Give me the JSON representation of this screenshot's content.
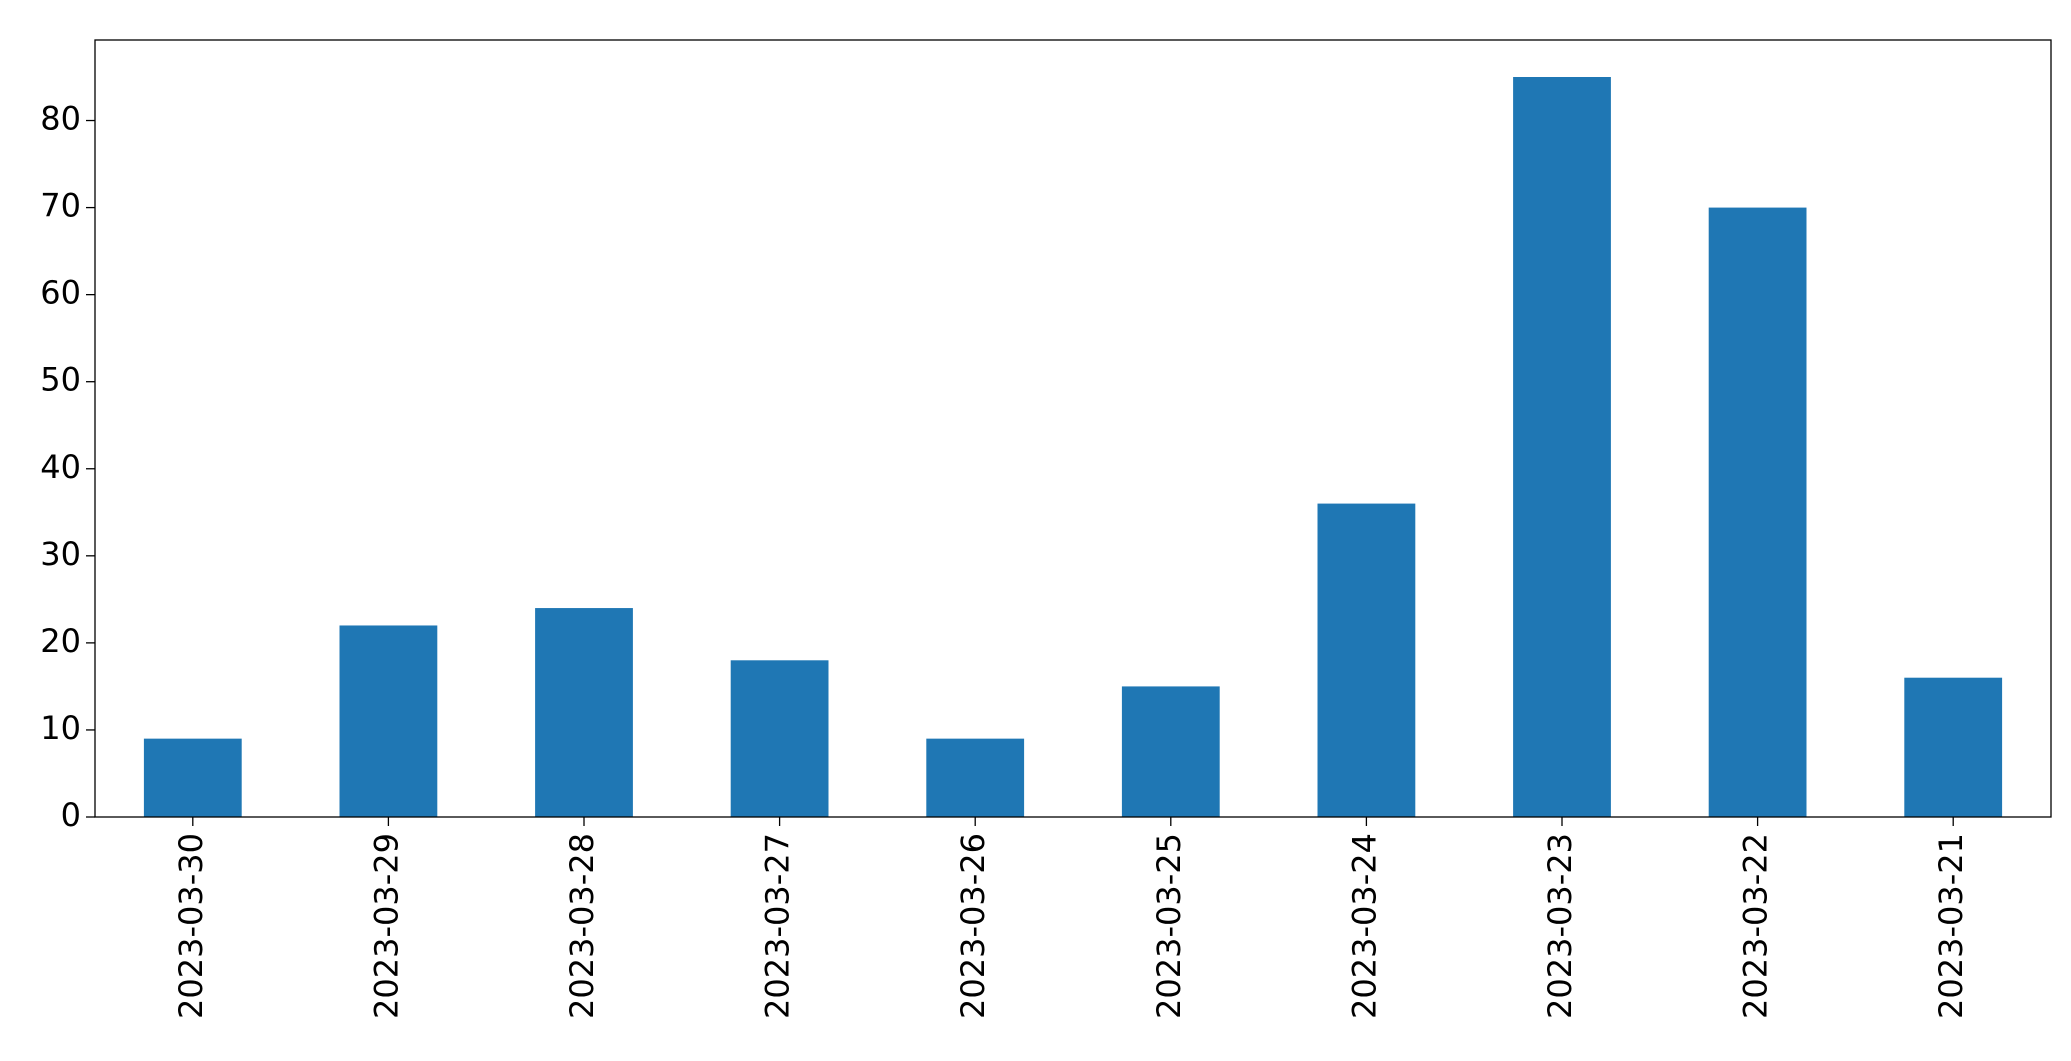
{
  "chart_data": {
    "type": "bar",
    "categories": [
      "2023-03-30",
      "2023-03-29",
      "2023-03-28",
      "2023-03-27",
      "2023-03-26",
      "2023-03-25",
      "2023-03-24",
      "2023-03-23",
      "2023-03-22",
      "2023-03-21"
    ],
    "values": [
      9,
      22,
      24,
      18,
      9,
      15,
      36,
      85,
      70,
      16
    ],
    "color": "#1f77b4",
    "ylim": [
      0,
      89.25
    ],
    "yticks": [
      0,
      10,
      20,
      30,
      40,
      50,
      60,
      70,
      80
    ],
    "grid": false
  }
}
